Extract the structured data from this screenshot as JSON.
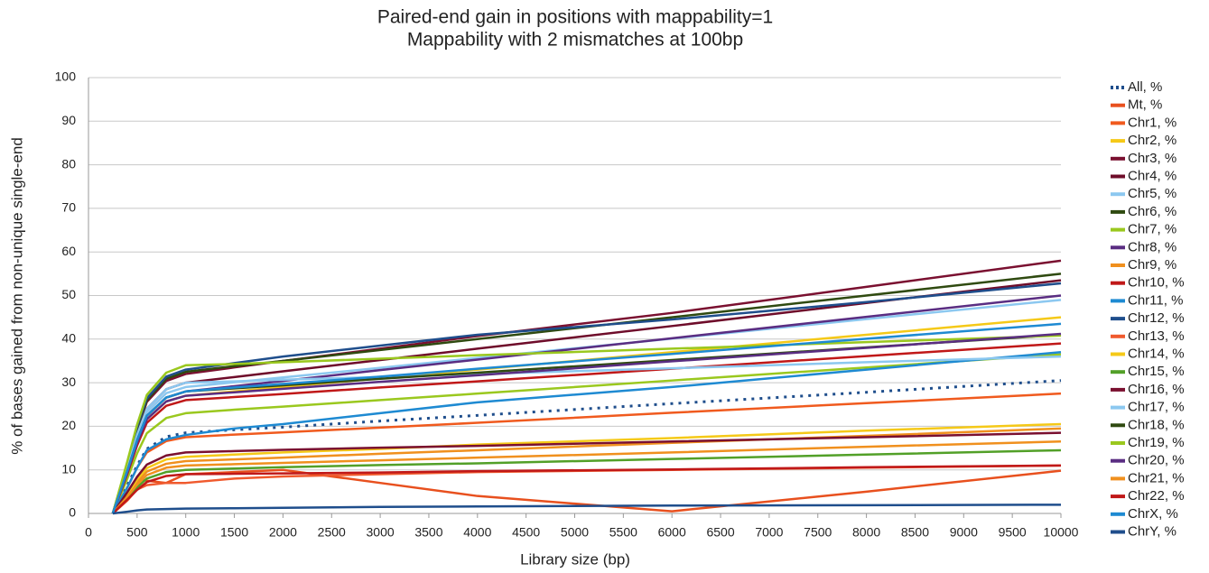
{
  "chart_data": {
    "type": "line",
    "title": "Paired-end gain in positions with mappability=1",
    "subtitle": "Mappability with 2 mismatches at 100bp",
    "x_label": "Library size (bp)",
    "y_label": "% of bases gained from non-unique single-end",
    "x": [
      250,
      400,
      500,
      600,
      800,
      1000,
      1500,
      2000,
      3000,
      4000,
      6000,
      8000,
      10000
    ],
    "xlim": [
      0,
      10000
    ],
    "xticks": [
      0,
      500,
      1000,
      1500,
      2000,
      2500,
      3000,
      3500,
      4000,
      4500,
      5000,
      5500,
      6000,
      6500,
      7000,
      7500,
      8000,
      8500,
      9000,
      9500,
      10000
    ],
    "ylim": [
      0,
      100
    ],
    "yticks": [
      0,
      10,
      20,
      30,
      40,
      50,
      60,
      70,
      80,
      90,
      100
    ],
    "grid": true,
    "legend": "right",
    "series": [
      {
        "name": "All, %",
        "color": "#1f4e8c",
        "line_style": "dotted",
        "values": [
          0,
          6.5,
          11,
          14.8,
          17.6,
          18.5,
          19.2,
          19.8,
          21.2,
          22.5,
          25.2,
          27.8,
          30.5
        ]
      },
      {
        "name": "Mt, %",
        "color": "#e8501e",
        "values": [
          0,
          4,
          8,
          7.5,
          7,
          9,
          9.5,
          10,
          7,
          4,
          0.5,
          5,
          9.8
        ]
      },
      {
        "name": "Chr1, %",
        "color": "#f05a1e",
        "values": [
          0,
          6,
          10.5,
          14,
          16.6,
          17.5,
          18.1,
          18.6,
          19.7,
          20.8,
          23.1,
          25.3,
          27.5
        ]
      },
      {
        "name": "Chr2, %",
        "color": "#f5c918",
        "values": [
          0,
          9.5,
          16,
          21.6,
          25.7,
          27,
          28,
          29,
          31,
          33,
          37,
          41,
          45
        ]
      },
      {
        "name": "Chr3, %",
        "color": "#7a1030",
        "values": [
          0,
          11,
          19,
          25.6,
          30.4,
          32,
          33.5,
          35,
          37.8,
          40.7,
          46,
          52,
          58
        ]
      },
      {
        "name": "Chr4, %",
        "color": "#6e0c2a",
        "values": [
          0,
          10.5,
          18,
          24,
          28.5,
          30,
          31.3,
          32.6,
          35.2,
          37.8,
          43,
          48.3,
          53.5
        ]
      },
      {
        "name": "Chr5, %",
        "color": "#8cc8f0",
        "values": [
          0,
          10,
          17.4,
          23.2,
          27.6,
          29,
          30.1,
          31.2,
          33.4,
          35.7,
          40.1,
          44.6,
          49
        ]
      },
      {
        "name": "Chr6, %",
        "color": "#2f4a10",
        "values": [
          0,
          11.4,
          19.5,
          26,
          30.9,
          32.5,
          33.8,
          35,
          37.5,
          40,
          45,
          50,
          55
        ]
      },
      {
        "name": "Chr7, %",
        "color": "#9ac81e",
        "values": [
          0,
          8,
          13.8,
          18.4,
          21.9,
          23,
          23.8,
          24.5,
          26,
          27.5,
          30.5,
          33.5,
          36.5
        ]
      },
      {
        "name": "Chr8, %",
        "color": "#5a2d82",
        "values": [
          0,
          9.8,
          16.8,
          22.4,
          26.6,
          28,
          29.2,
          30.4,
          32.9,
          35.3,
          40.2,
          45.1,
          50
        ]
      },
      {
        "name": "Chr9, %",
        "color": "#f0901e",
        "values": [
          0,
          4.2,
          7.2,
          9.6,
          11.4,
          12,
          12.4,
          12.8,
          13.7,
          14.5,
          16.2,
          17.8,
          19.5
        ]
      },
      {
        "name": "Chr10, %",
        "color": "#c01818",
        "values": [
          0,
          9.1,
          15.6,
          20.8,
          24.7,
          26,
          26.7,
          27.4,
          28.9,
          30.3,
          33.2,
          36.1,
          39
        ]
      },
      {
        "name": "Chr11, %",
        "color": "#1e8ad2",
        "values": [
          0,
          6,
          10.5,
          14.5,
          17,
          18,
          19.5,
          20.5,
          23,
          25.5,
          29,
          33,
          37
        ]
      },
      {
        "name": "Chr12, %",
        "color": "#1f4e8c",
        "values": [
          0,
          11.5,
          19.8,
          26.4,
          31.4,
          33,
          34.5,
          36,
          38.5,
          41,
          44.5,
          48.5,
          52.8
        ]
      },
      {
        "name": "Chr13, %",
        "color": "#f05a2e",
        "values": [
          0,
          3,
          5.5,
          6.5,
          7,
          7,
          8,
          8.5,
          9,
          9.5,
          10,
          10.5,
          11
        ]
      },
      {
        "name": "Chr14, %",
        "color": "#f5c918",
        "values": [
          0,
          4.5,
          7.8,
          10.4,
          12.4,
          13,
          13.5,
          14,
          14.8,
          15.8,
          17.3,
          19,
          20.5
        ]
      },
      {
        "name": "Chr15, %",
        "color": "#52a028",
        "values": [
          0,
          3.5,
          6,
          8,
          9.5,
          10,
          10.3,
          10.6,
          11.1,
          11.5,
          12.5,
          13.5,
          14.5
        ]
      },
      {
        "name": "Chr16, %",
        "color": "#7a1030",
        "values": [
          0,
          4.9,
          8.4,
          11.2,
          13.3,
          14,
          14.3,
          14.6,
          15.1,
          15.5,
          16.5,
          17.5,
          18.5
        ]
      },
      {
        "name": "Chr17, %",
        "color": "#8cc8f0",
        "values": [
          0,
          10.5,
          18,
          24,
          28.5,
          30,
          30.3,
          30.7,
          31.3,
          32,
          33.3,
          34.7,
          36
        ]
      },
      {
        "name": "Chr18, %",
        "color": "#2f4a10",
        "values": [
          0,
          9.8,
          16.8,
          22.4,
          26.6,
          28,
          28.7,
          29.4,
          30.9,
          32.3,
          35.2,
          38.1,
          41
        ]
      },
      {
        "name": "Chr19, %",
        "color": "#9ac81e",
        "values": [
          0,
          12,
          20.4,
          27.2,
          32.3,
          34,
          34.3,
          34.7,
          35.5,
          36.3,
          37.8,
          39.3,
          40.8
        ]
      },
      {
        "name": "Chr20, %",
        "color": "#5a2d82",
        "values": [
          0,
          9.5,
          16.2,
          21.6,
          25.7,
          27,
          27.8,
          28.6,
          30.2,
          31.7,
          34.9,
          38,
          41.2
        ]
      },
      {
        "name": "Chr21, %",
        "color": "#f0901e",
        "values": [
          0,
          3.9,
          6.6,
          8.8,
          10.5,
          11,
          11.3,
          11.6,
          12.2,
          12.8,
          14,
          15.3,
          16.5
        ]
      },
      {
        "name": "Chr22, %",
        "color": "#c01818",
        "values": [
          0,
          3.2,
          5.4,
          7.2,
          8.6,
          9,
          9.1,
          9.2,
          9.4,
          9.7,
          10.1,
          10.6,
          11
        ]
      },
      {
        "name": "ChrX, %",
        "color": "#1e8ad2",
        "values": [
          0,
          9.8,
          16.8,
          22.4,
          26.6,
          28,
          28.9,
          29.7,
          31.4,
          33.2,
          36.6,
          40.1,
          43.5
        ]
      },
      {
        "name": "ChrY, %",
        "color": "#1f4e8c",
        "values": [
          0,
          0.4,
          0.7,
          0.9,
          1,
          1.1,
          1.2,
          1.3,
          1.5,
          1.6,
          1.8,
          1.9,
          2
        ]
      }
    ]
  }
}
